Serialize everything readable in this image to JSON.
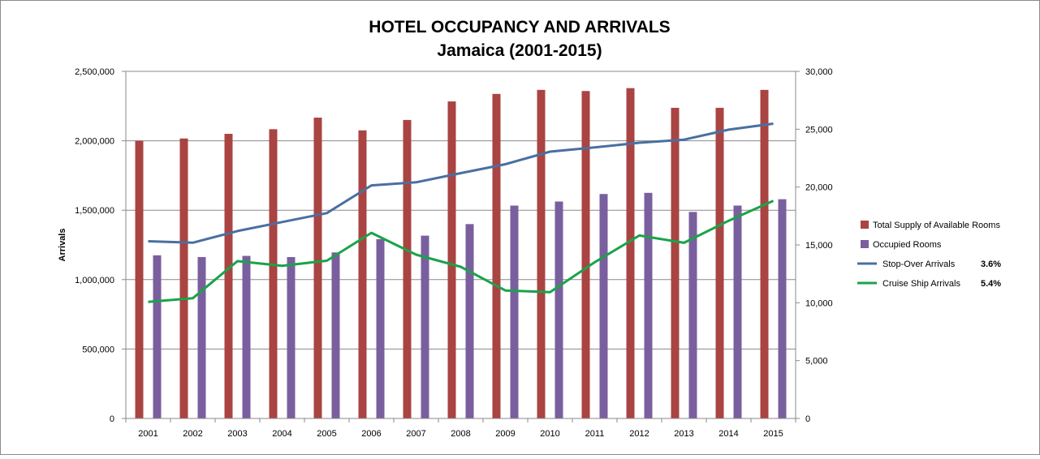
{
  "chart_data": {
    "type": "bar",
    "title": "HOTEL OCCUPANCY AND ARRIVALS",
    "subtitle": "Jamaica (2001-2015)",
    "ylabel": "Arrivals",
    "ylabel_right": "",
    "categories": [
      "2001",
      "2002",
      "2003",
      "2004",
      "2005",
      "2006",
      "2007",
      "2008",
      "2009",
      "2010",
      "2011",
      "2012",
      "2013",
      "2014",
      "2015"
    ],
    "ylim": [
      0,
      2500000
    ],
    "ylim_right": [
      0,
      30000
    ],
    "y_ticks": [
      0,
      500000,
      1000000,
      1500000,
      2000000,
      2500000
    ],
    "y_tick_labels": [
      "0",
      "500,000",
      "1,000,000",
      "1,500,000",
      "2,000,000",
      "2,500,000"
    ],
    "y_right_ticks": [
      0,
      5000,
      10000,
      15000,
      20000,
      25000,
      30000
    ],
    "y_right_tick_labels": [
      "0",
      "5,000",
      "10,000",
      "15,000",
      "20,000",
      "25,000",
      "30,000"
    ],
    "grid": true,
    "legend_position": "right",
    "series": [
      {
        "name": "Total Supply of Available Rooms",
        "kind": "bar",
        "axis": "right",
        "color": "#a94442",
        "values": [
          24000,
          24200,
          24600,
          25000,
          26000,
          24900,
          25800,
          27400,
          28050,
          28400,
          28300,
          28550,
          26850,
          26850,
          28400
        ]
      },
      {
        "name": "Occupied Rooms",
        "kind": "bar",
        "axis": "right",
        "color": "#7a5f9e",
        "values": [
          14100,
          13950,
          14050,
          13950,
          14350,
          15500,
          15800,
          16800,
          18400,
          18750,
          19400,
          19500,
          17850,
          18400,
          18950
        ]
      },
      {
        "name": "Stop-Over Arrivals",
        "kind": "line",
        "axis": "left",
        "color": "#4a6fa0",
        "rate": "3.6%",
        "values": [
          1276000,
          1266000,
          1350000,
          1415000,
          1479000,
          1679000,
          1701000,
          1767000,
          1831000,
          1922000,
          1952000,
          1986000,
          2008000,
          2080000,
          2123000
        ]
      },
      {
        "name": "Cruise Ship Arrivals",
        "kind": "line",
        "axis": "left",
        "color": "#1aa34a",
        "rate": "5.4%",
        "values": [
          840000,
          866000,
          1133000,
          1100000,
          1136000,
          1337000,
          1180000,
          1092000,
          922000,
          910000,
          1125000,
          1318000,
          1265000,
          1424000,
          1568000
        ]
      }
    ]
  }
}
